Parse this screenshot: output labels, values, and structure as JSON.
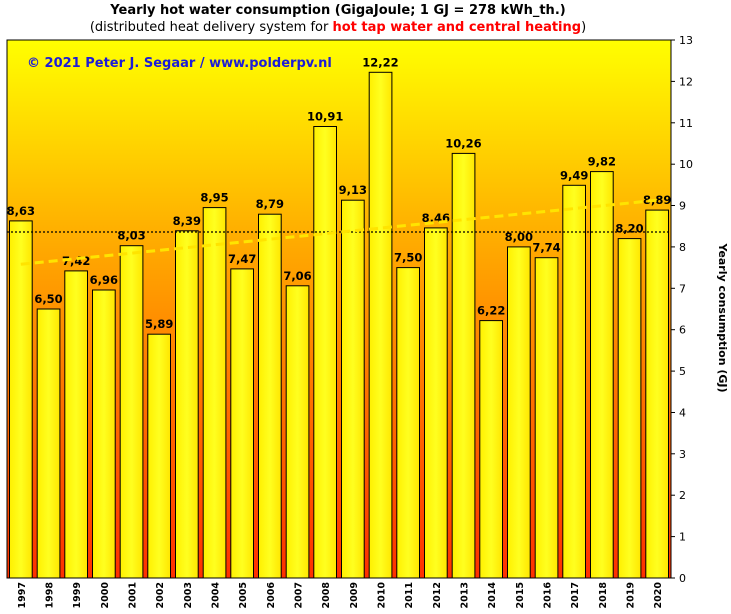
{
  "header": {
    "title": "Yearly hot water consumption  (GigaJoule;  1 GJ = 278 kWh_th.)",
    "subtitle_prefix": "(distributed heat delivery system for ",
    "subtitle_highlight": "hot tap water and central heating",
    "subtitle_suffix": ")",
    "copyright": "© 2021  Peter J. Segaar  /  www.polderpv.nl"
  },
  "colors": {
    "bar_fill_top": "#ffff00",
    "bar_fill_bottom": "#ffe800",
    "background_top": "#ffff00",
    "background_bottom": "#ff3000",
    "trend": "#ffe400",
    "copyright": "#1c1cd8",
    "highlight": "#ff0000"
  },
  "chart_data": {
    "type": "bar",
    "categories": [
      "1997",
      "1998",
      "1999",
      "2000",
      "2001",
      "2002",
      "2003",
      "2004",
      "2005",
      "2006",
      "2007",
      "2008",
      "2009",
      "2010",
      "2011",
      "2012",
      "2013",
      "2014",
      "2015",
      "2016",
      "2017",
      "2018",
      "2019",
      "2020"
    ],
    "values": [
      8.63,
      6.5,
      7.42,
      6.96,
      8.03,
      5.89,
      8.39,
      8.95,
      7.47,
      8.79,
      7.06,
      10.91,
      9.13,
      12.22,
      7.5,
      8.46,
      10.26,
      6.22,
      8.0,
      7.74,
      9.49,
      9.82,
      8.2,
      8.89
    ],
    "value_labels": [
      "8,63",
      "6,50",
      "7,42",
      "6,96",
      "8,03",
      "5,89",
      "8,39",
      "8,95",
      "7,47",
      "8,79",
      "7,06",
      "10,91",
      "9,13",
      "12,22",
      "7,50",
      "8,46",
      "10,26",
      "6,22",
      "8,00",
      "7,74",
      "9,49",
      "9,82",
      "8,20",
      "8,89"
    ],
    "ylabel": "Yearly consumption (GJ)",
    "ylim": [
      0,
      13
    ],
    "yticks": [
      0,
      1,
      2,
      3,
      4,
      5,
      6,
      7,
      8,
      9,
      10,
      11,
      12,
      13
    ],
    "y_axis_side": "right",
    "average_line": 8.36,
    "trend_line": {
      "start": 7.58,
      "end": 9.13
    }
  }
}
